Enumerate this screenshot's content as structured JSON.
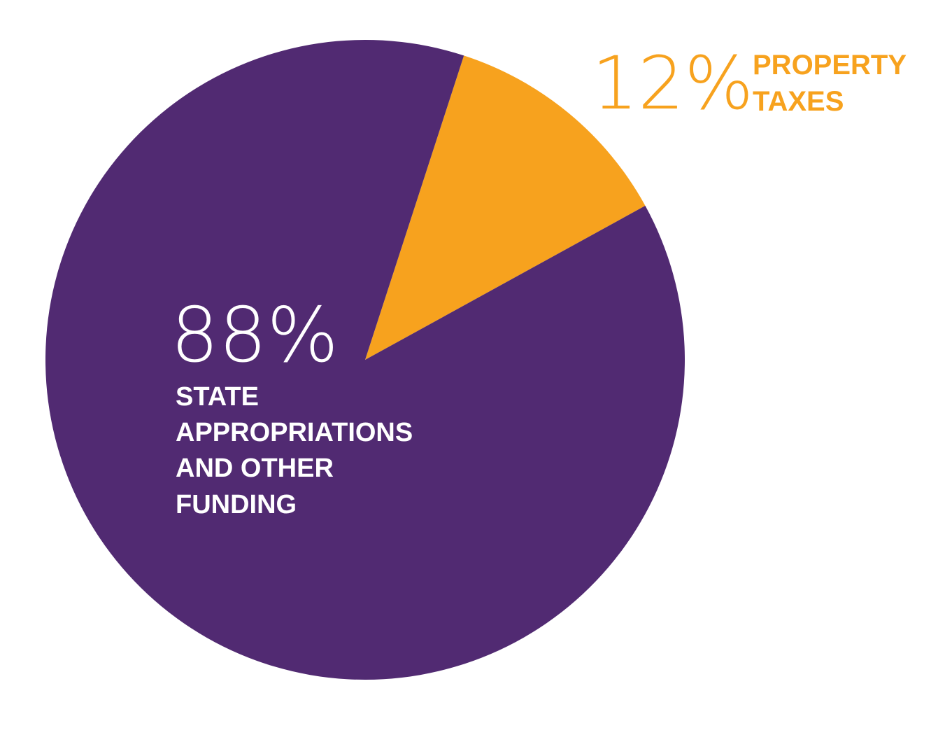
{
  "chart_data": {
    "type": "pie",
    "slices": [
      {
        "key": "property",
        "label_lines": [
          "PROPERTY",
          "TAXES"
        ],
        "value": 12,
        "value_label": "12%",
        "color": "#F7A21E"
      },
      {
        "key": "state",
        "label_lines": [
          "STATE",
          "APPROPRIATIONS",
          "AND OTHER",
          "FUNDING"
        ],
        "value": 88,
        "value_label": "88%",
        "color": "#512A72"
      }
    ],
    "start_angle_deg": 18,
    "legend": "none"
  },
  "colors": {
    "background": "#FFFFFF",
    "inside_label": "#FFFFFF",
    "outside_label": "#F7A21E"
  }
}
